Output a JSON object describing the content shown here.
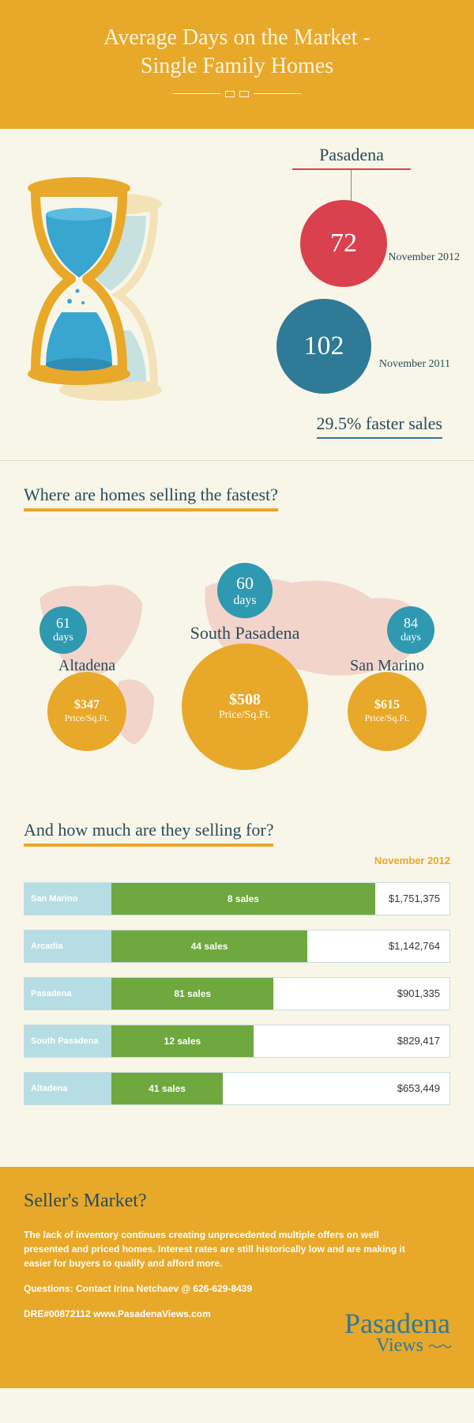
{
  "colors": {
    "gold": "#e8a829",
    "cream": "#f8f6e8",
    "red": "#d9414e",
    "teal": "#2e7a97",
    "cyan": "#2e99b0",
    "green": "#6fa83e",
    "lightblue": "#b6dde3",
    "darktext": "#2a4b5a"
  },
  "header": {
    "title_line1": "Average Days on the Market -",
    "title_line2": "Single Family Homes"
  },
  "pasadena": {
    "label": "Pasadena",
    "stat1": {
      "value": "72",
      "caption": "November 2012"
    },
    "stat2": {
      "value": "102",
      "caption": "November 2011"
    },
    "faster": "29.5% faster sales"
  },
  "fastest": {
    "question": "Where are homes selling the fastest?",
    "cities": [
      {
        "name": "Altadena",
        "days": "61",
        "days_label": "days",
        "price": "$347",
        "price_label": "Price/Sq.Ft."
      },
      {
        "name": "South Pasadena",
        "days": "60",
        "days_label": "days",
        "price": "$508",
        "price_label": "Price/Sq.Ft."
      },
      {
        "name": "San Marino",
        "days": "84",
        "days_label": "days",
        "price": "$615",
        "price_label": "Price/Sq.Ft."
      }
    ]
  },
  "sales": {
    "question": "And how much are they selling for?",
    "period": "November 2012",
    "rows": [
      {
        "city": "San Marino",
        "count": "8 sales",
        "price": "$1,751,375",
        "pct": 78
      },
      {
        "city": "Arcadia",
        "count": "44 sales",
        "price": "$1,142,764",
        "pct": 58
      },
      {
        "city": "Pasadena",
        "count": "81 sales",
        "price": "$901,335",
        "pct": 48
      },
      {
        "city": "South Pasadena",
        "count": "12 sales",
        "price": "$829,417",
        "pct": 42
      },
      {
        "city": "Altadena",
        "count": "41 sales",
        "price": "$653,449",
        "pct": 33
      }
    ]
  },
  "footer": {
    "heading": "Seller's Market?",
    "body": "The lack of inventory continues creating unprecedented multiple offers on well presented and priced homes.  Interest rates are still historically low and are making it easier for buyers to qualify and afford more.",
    "contact": "Questions:  Contact Irina Netchaev @ 626-629-8439",
    "dre": "DRE#00872112  www.PasadenaViews.com",
    "logo1": "Pasadena",
    "logo2": "Views"
  }
}
